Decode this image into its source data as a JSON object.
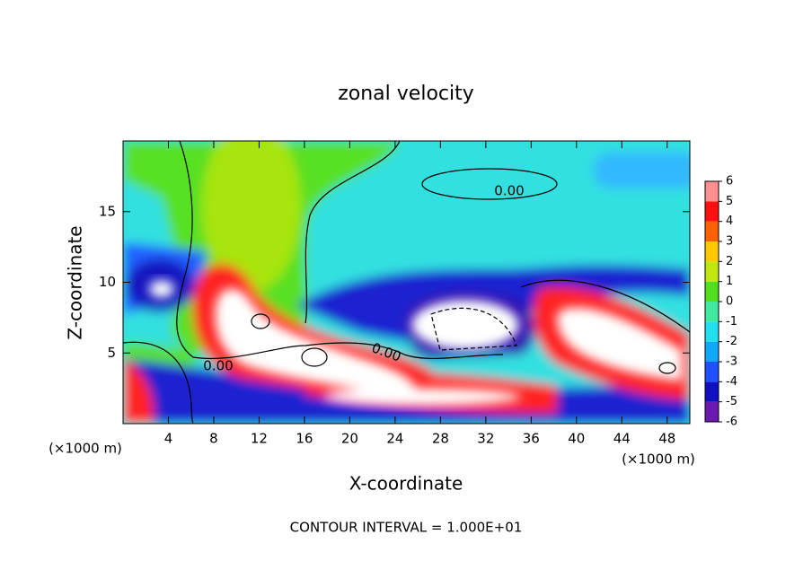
{
  "chart_data": {
    "type": "contour",
    "title": "zonal velocity",
    "x_label": "X-coordinate",
    "y_label": "Z-coordinate",
    "x_unit_labels": [
      "(×1000 m)",
      "(×1000 m)"
    ],
    "footnote": "CONTOUR INTERVAL = 1.000E+01",
    "xlim": [
      0,
      50
    ],
    "xticks": [
      4,
      8,
      12,
      16,
      20,
      24,
      28,
      32,
      36,
      40,
      44,
      48
    ],
    "ylim": [
      0,
      20
    ],
    "yticks": [
      5,
      10,
      15
    ],
    "contour_labels": [
      "0.00",
      "0.00",
      "0.00"
    ],
    "colorbar": {
      "ticks": [
        -6,
        -5,
        -4,
        -3,
        -2,
        -1,
        0,
        1,
        2,
        3,
        4,
        5,
        6
      ],
      "colors": [
        "#6a1ab0",
        "#1010c0",
        "#2050ff",
        "#10a8ff",
        "#20e0f0",
        "#40e8a0",
        "#50e020",
        "#c0e810",
        "#ffc800",
        "#ff6000",
        "#ff1010",
        "#ff9090"
      ]
    }
  }
}
